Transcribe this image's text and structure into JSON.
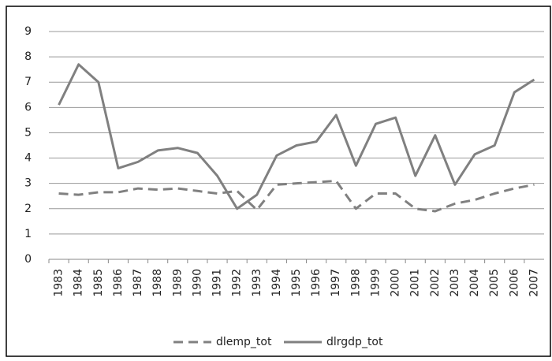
{
  "chart_data": {
    "type": "line",
    "categories": [
      "1983",
      "1984",
      "1985",
      "1986",
      "1987",
      "1988",
      "1989",
      "1990",
      "1991",
      "1992",
      "1993",
      "1994",
      "1995",
      "1996",
      "1997",
      "1998",
      "1999",
      "2000",
      "2001",
      "2002",
      "2003",
      "2004",
      "2005",
      "2006",
      "2007"
    ],
    "series": [
      {
        "name": "dlemp_tot",
        "color": "#808080",
        "line_style": "dashed",
        "values": [
          2.6,
          2.55,
          2.65,
          2.65,
          2.8,
          2.75,
          2.8,
          2.7,
          2.6,
          2.7,
          1.95,
          2.95,
          3.0,
          3.05,
          3.1,
          2.0,
          2.6,
          2.6,
          2.0,
          1.9,
          2.2,
          2.35,
          2.6,
          2.8,
          2.95
        ]
      },
      {
        "name": "dlrgdp_tot",
        "color": "#808080",
        "line_style": "solid",
        "values": [
          6.1,
          7.7,
          7.0,
          3.6,
          3.85,
          4.3,
          4.4,
          4.2,
          3.3,
          2.0,
          2.55,
          4.1,
          4.5,
          4.65,
          5.7,
          3.7,
          5.35,
          5.6,
          3.3,
          4.9,
          2.95,
          4.15,
          4.5,
          6.6,
          7.1
        ]
      }
    ],
    "ylim": [
      0,
      9
    ],
    "yticks": [
      0,
      1,
      2,
      3,
      4,
      5,
      6,
      7,
      8,
      9
    ],
    "grid": true,
    "legend": "bottom"
  }
}
